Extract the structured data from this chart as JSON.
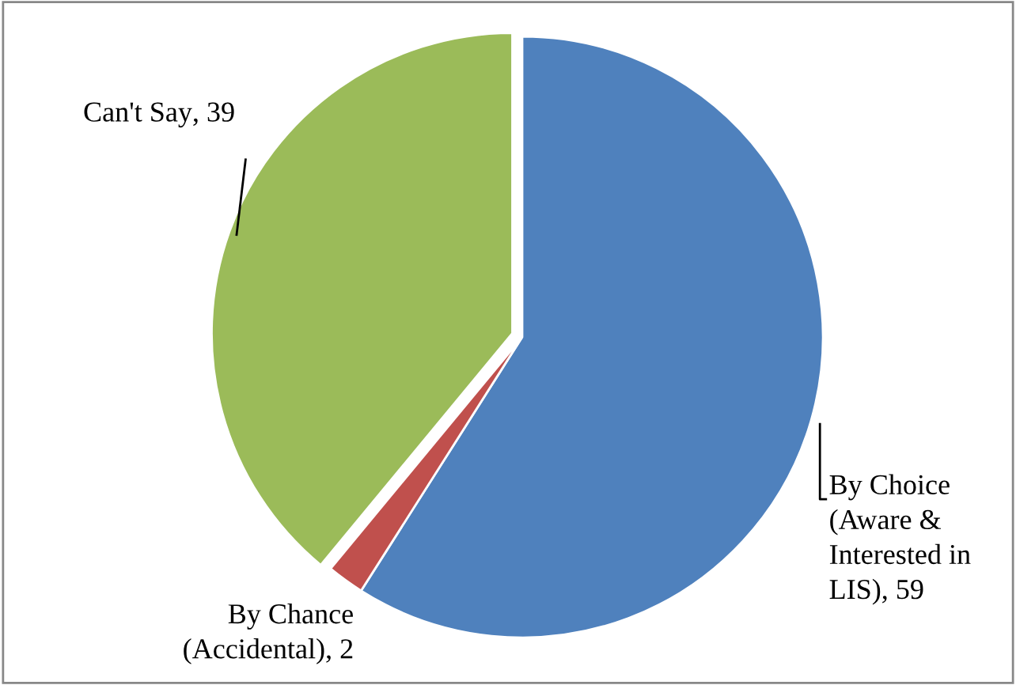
{
  "chart_data": {
    "type": "pie",
    "categories": [
      "By Choice\n(Aware &\nInterested in\nLIS)",
      "By Chance\n(Accidental)",
      "Can't Say"
    ],
    "values": [
      59,
      2,
      39
    ],
    "colors": [
      "#4f81bd",
      "#c0504d",
      "#9bbb59"
    ],
    "value_labels": [
      ", 59",
      ", 2",
      ", 39"
    ],
    "legend": false
  }
}
